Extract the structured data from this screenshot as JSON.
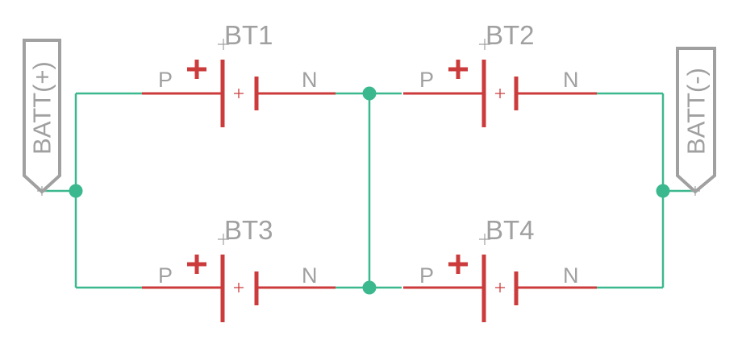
{
  "diagram": {
    "colors": {
      "wire": "#3bb88e",
      "component": "#cc3b3b",
      "label": "#a0a0a0",
      "background": "#ffffff"
    },
    "ports": {
      "positive": "BATT(+)",
      "negative": "BATT(-)"
    },
    "batteries": [
      {
        "ref": "BT1",
        "pin_p": "P",
        "pin_n": "N",
        "polarity": "+"
      },
      {
        "ref": "BT2",
        "pin_p": "P",
        "pin_n": "N",
        "polarity": "+"
      },
      {
        "ref": "BT3",
        "pin_p": "P",
        "pin_n": "N",
        "polarity": "+"
      },
      {
        "ref": "BT4",
        "pin_p": "P",
        "pin_n": "N",
        "polarity": "+"
      }
    ]
  }
}
